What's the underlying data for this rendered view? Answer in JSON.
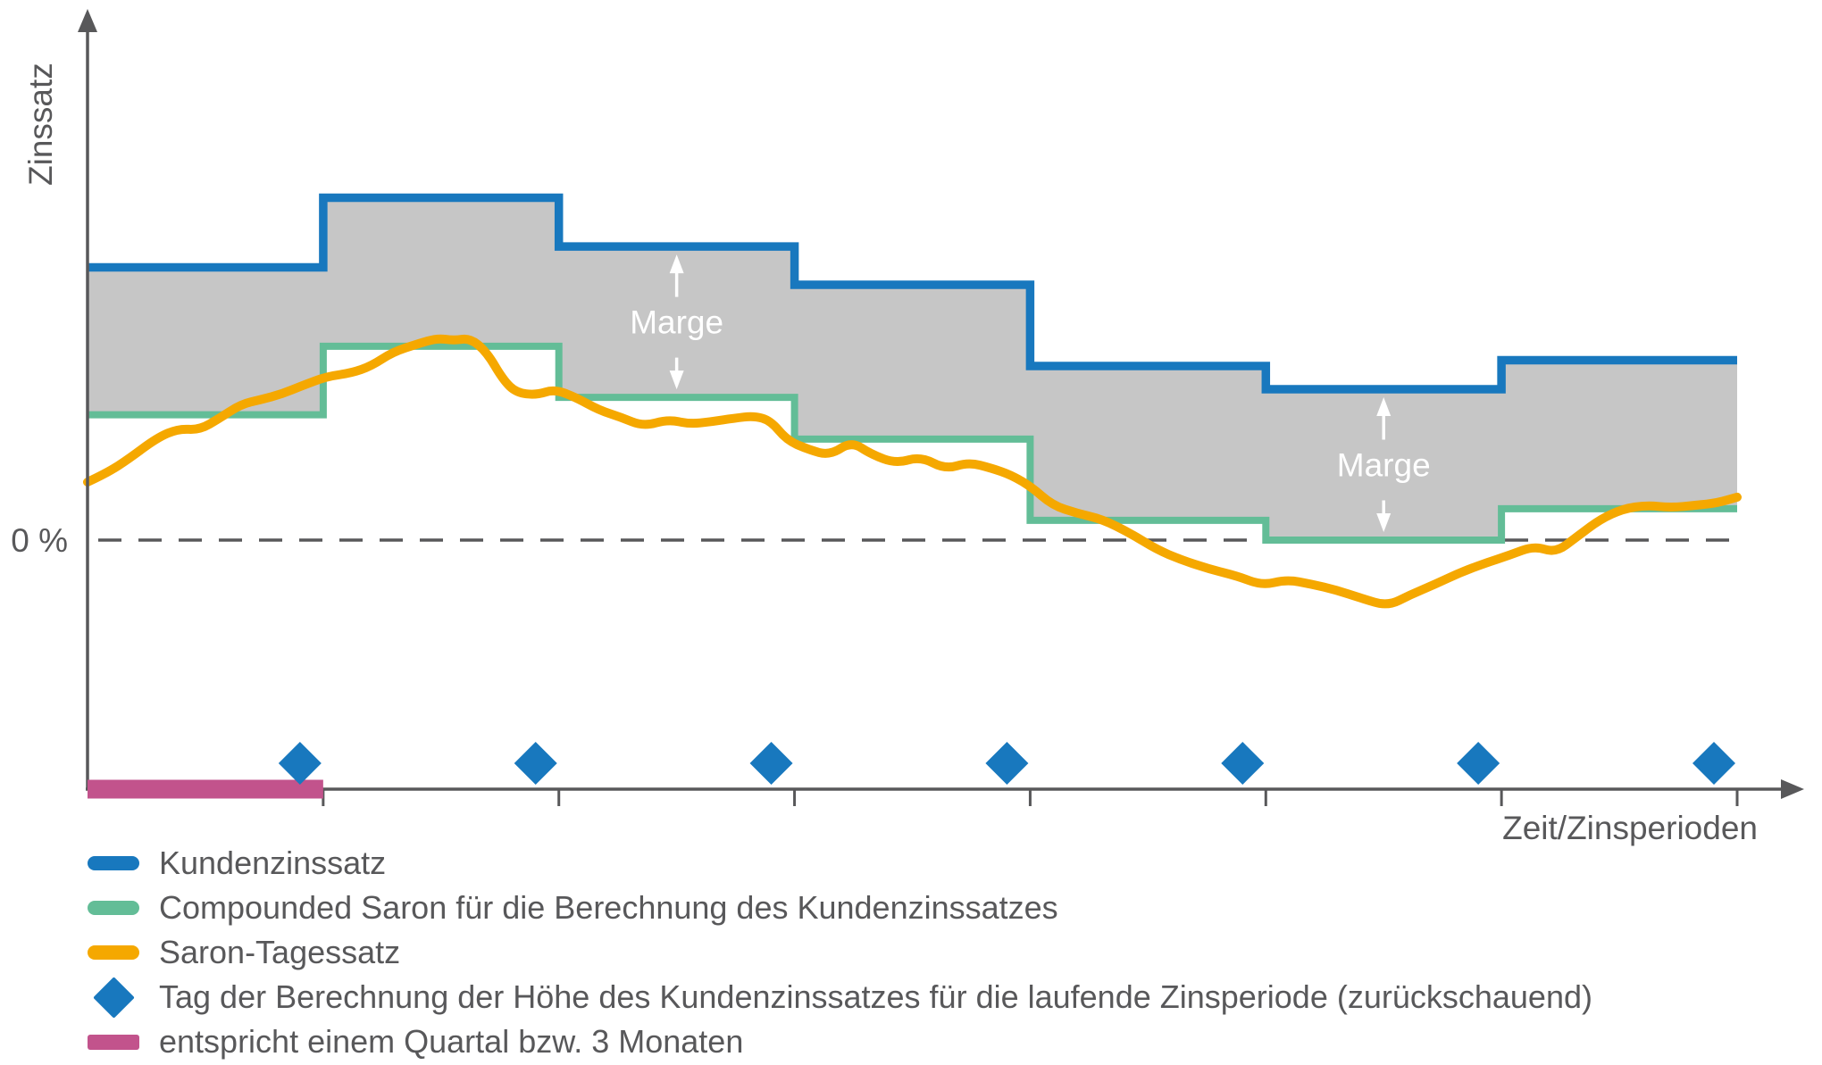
{
  "colors": {
    "kundenzinssatz": "#1878be",
    "compounded_saron": "#63bd97",
    "saron_tagessatz": "#f5a800",
    "quartal": "#c2538c",
    "marge_fill": "#c6c6c6",
    "axis": "#58585a",
    "annotation_text": "#ffffff"
  },
  "chart_data": {
    "type": "line",
    "title": "",
    "ylabel": "Zinssatz",
    "xlabel": "Zeit/Zinsperioden",
    "zero_label": "0 %",
    "periods": 7,
    "grid": false,
    "legend_position": "bottom",
    "y_range_pct": [
      -2.1,
      4.6
    ],
    "x_range_periods": [
      0,
      7
    ],
    "series": [
      {
        "name": "Kundenzinssatz",
        "style": "step",
        "color": "kundenzinssatz",
        "values": [
          2.35,
          2.95,
          2.53,
          2.2,
          1.5,
          1.3,
          1.55
        ]
      },
      {
        "name": "Compounded Saron für die Berechnung des Kundenzinssatzes",
        "style": "step",
        "color": "compounded_saron",
        "values": [
          1.08,
          1.67,
          1.23,
          0.87,
          0.17,
          0.0,
          0.27
        ]
      },
      {
        "name": "Saron-Tagessatz",
        "style": "curve",
        "color": "saron_tagessatz",
        "points": [
          [
            0.0,
            0.5
          ],
          [
            0.012,
            0.58
          ],
          [
            0.025,
            0.7
          ],
          [
            0.042,
            0.88
          ],
          [
            0.055,
            0.96
          ],
          [
            0.068,
            0.95
          ],
          [
            0.08,
            1.05
          ],
          [
            0.093,
            1.17
          ],
          [
            0.105,
            1.21
          ],
          [
            0.118,
            1.26
          ],
          [
            0.13,
            1.33
          ],
          [
            0.145,
            1.41
          ],
          [
            0.16,
            1.44
          ],
          [
            0.172,
            1.5
          ],
          [
            0.185,
            1.62
          ],
          [
            0.2,
            1.69
          ],
          [
            0.212,
            1.74
          ],
          [
            0.222,
            1.72
          ],
          [
            0.232,
            1.74
          ],
          [
            0.242,
            1.62
          ],
          [
            0.252,
            1.38
          ],
          [
            0.26,
            1.27
          ],
          [
            0.272,
            1.25
          ],
          [
            0.283,
            1.3
          ],
          [
            0.296,
            1.23
          ],
          [
            0.31,
            1.12
          ],
          [
            0.323,
            1.06
          ],
          [
            0.337,
            0.98
          ],
          [
            0.352,
            1.04
          ],
          [
            0.365,
            1.0
          ],
          [
            0.378,
            1.02
          ],
          [
            0.392,
            1.05
          ],
          [
            0.404,
            1.07
          ],
          [
            0.414,
            1.03
          ],
          [
            0.424,
            0.86
          ],
          [
            0.437,
            0.78
          ],
          [
            0.45,
            0.73
          ],
          [
            0.463,
            0.85
          ],
          [
            0.475,
            0.74
          ],
          [
            0.49,
            0.66
          ],
          [
            0.505,
            0.72
          ],
          [
            0.52,
            0.61
          ],
          [
            0.534,
            0.67
          ],
          [
            0.548,
            0.62
          ],
          [
            0.56,
            0.56
          ],
          [
            0.572,
            0.46
          ],
          [
            0.585,
            0.3
          ],
          [
            0.6,
            0.23
          ],
          [
            0.615,
            0.18
          ],
          [
            0.632,
            0.06
          ],
          [
            0.648,
            -0.08
          ],
          [
            0.663,
            -0.17
          ],
          [
            0.68,
            -0.25
          ],
          [
            0.697,
            -0.31
          ],
          [
            0.712,
            -0.39
          ],
          [
            0.727,
            -0.34
          ],
          [
            0.742,
            -0.38
          ],
          [
            0.757,
            -0.43
          ],
          [
            0.772,
            -0.5
          ],
          [
            0.788,
            -0.57
          ],
          [
            0.802,
            -0.47
          ],
          [
            0.817,
            -0.38
          ],
          [
            0.832,
            -0.28
          ],
          [
            0.847,
            -0.2
          ],
          [
            0.862,
            -0.13
          ],
          [
            0.877,
            -0.05
          ],
          [
            0.89,
            -0.11
          ],
          [
            0.903,
            0.03
          ],
          [
            0.917,
            0.18
          ],
          [
            0.931,
            0.27
          ],
          [
            0.945,
            0.3
          ],
          [
            0.96,
            0.28
          ],
          [
            0.975,
            0.3
          ],
          [
            0.988,
            0.32
          ],
          [
            1.0,
            0.37
          ]
        ]
      }
    ],
    "band": {
      "between": [
        "Kundenzinssatz",
        "Compounded Saron"
      ],
      "color": "marge_fill"
    },
    "annotations": [
      {
        "label": "Marge",
        "period": 3
      },
      {
        "label": "Marge",
        "period": 6
      }
    ],
    "markers": {
      "name": "Tag der Berechnung",
      "shape": "diamond",
      "color": "kundenzinssatz",
      "at_period_ends": [
        1,
        2,
        3,
        4,
        5,
        6,
        7
      ]
    },
    "quarter_bar": {
      "period": 1,
      "color": "quartal"
    }
  },
  "legend": {
    "items": [
      {
        "label": "Kundenzinssatz",
        "swatch": "line",
        "color": "kundenzinssatz"
      },
      {
        "label": "Compounded Saron für die Berechnung des Kundenzinssatzes",
        "swatch": "line",
        "color": "compounded_saron"
      },
      {
        "label": "Saron-Tagessatz",
        "swatch": "line",
        "color": "saron_tagessatz"
      },
      {
        "label": "Tag der Berechnung der Höhe des Kundenzinssatzes für die laufende Zinsperiode (zurückschauend)",
        "swatch": "diamond",
        "color": "kundenzinssatz"
      },
      {
        "label": "entspricht einem Quartal bzw. 3 Monaten",
        "swatch": "bar",
        "color": "quartal"
      }
    ]
  }
}
